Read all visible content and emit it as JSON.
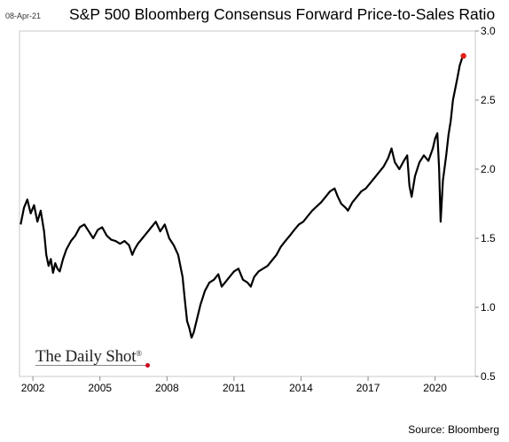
{
  "header": {
    "date_stamp": "08-Apr-21",
    "title": "S&P 500 Bloomberg Consensus Forward Price-to-Sales Ratio"
  },
  "footer": {
    "source": "Source: Bloomberg",
    "logo_text": "The Daily Shot",
    "logo_mark": "®"
  },
  "chart_data": {
    "type": "line",
    "title": "S&P 500 Bloomberg Consensus Forward Price-to-Sales Ratio",
    "xlabel": "",
    "ylabel": "",
    "xlim": [
      2001.4,
      2021.8
    ],
    "ylim": [
      0.5,
      3.0
    ],
    "y_axis_side": "right",
    "x_ticks": [
      2002,
      2005,
      2008,
      2011,
      2014,
      2017,
      2020
    ],
    "x_tick_labels": [
      "2002",
      "2005",
      "2008",
      "2011",
      "2014",
      "2017",
      "2020"
    ],
    "y_ticks": [
      0.5,
      1.0,
      1.5,
      2.0,
      2.5,
      3.0
    ],
    "y_tick_labels": [
      "0.5",
      "1.0",
      "1.5",
      "2.0",
      "2.5",
      "3.0"
    ],
    "grid": false,
    "series": [
      {
        "color": "#000000",
        "x": [
          2001.45,
          2001.6,
          2001.75,
          2001.9,
          2002.05,
          2002.2,
          2002.35,
          2002.5,
          2002.6,
          2002.7,
          2002.8,
          2002.9,
          2003.0,
          2003.1,
          2003.2,
          2003.35,
          2003.5,
          2003.7,
          2003.9,
          2004.1,
          2004.3,
          2004.5,
          2004.7,
          2004.9,
          2005.1,
          2005.3,
          2005.5,
          2005.7,
          2005.9,
          2006.1,
          2006.3,
          2006.45,
          2006.55,
          2006.7,
          2006.9,
          2007.1,
          2007.3,
          2007.5,
          2007.7,
          2007.9,
          2008.1,
          2008.3,
          2008.5,
          2008.7,
          2008.8,
          2008.9,
          2009.0,
          2009.1,
          2009.2,
          2009.35,
          2009.5,
          2009.7,
          2009.9,
          2010.1,
          2010.3,
          2010.45,
          2010.6,
          2010.8,
          2011.0,
          2011.2,
          2011.4,
          2011.6,
          2011.75,
          2011.9,
          2012.1,
          2012.3,
          2012.5,
          2012.7,
          2012.9,
          2013.1,
          2013.3,
          2013.5,
          2013.7,
          2013.9,
          2014.1,
          2014.3,
          2014.5,
          2014.7,
          2014.9,
          2015.1,
          2015.3,
          2015.5,
          2015.65,
          2015.8,
          2016.0,
          2016.1,
          2016.3,
          2016.5,
          2016.7,
          2016.9,
          2017.1,
          2017.3,
          2017.5,
          2017.7,
          2017.9,
          2018.05,
          2018.2,
          2018.4,
          2018.6,
          2018.75,
          2018.85,
          2018.95,
          2019.1,
          2019.3,
          2019.5,
          2019.7,
          2019.9,
          2020.0,
          2020.1,
          2020.18,
          2020.25,
          2020.35,
          2020.5,
          2020.6,
          2020.7,
          2020.8,
          2020.9,
          2021.0,
          2021.1,
          2021.2,
          2021.27
        ],
        "values": [
          1.6,
          1.72,
          1.78,
          1.68,
          1.74,
          1.62,
          1.7,
          1.55,
          1.38,
          1.3,
          1.35,
          1.25,
          1.32,
          1.28,
          1.26,
          1.35,
          1.42,
          1.48,
          1.52,
          1.58,
          1.6,
          1.55,
          1.5,
          1.56,
          1.58,
          1.52,
          1.49,
          1.48,
          1.46,
          1.48,
          1.45,
          1.38,
          1.42,
          1.46,
          1.5,
          1.54,
          1.58,
          1.62,
          1.55,
          1.6,
          1.5,
          1.45,
          1.38,
          1.22,
          1.05,
          0.9,
          0.85,
          0.78,
          0.82,
          0.92,
          1.02,
          1.12,
          1.18,
          1.2,
          1.24,
          1.15,
          1.18,
          1.22,
          1.26,
          1.28,
          1.2,
          1.18,
          1.15,
          1.22,
          1.26,
          1.28,
          1.3,
          1.34,
          1.38,
          1.44,
          1.48,
          1.52,
          1.56,
          1.6,
          1.62,
          1.66,
          1.7,
          1.73,
          1.76,
          1.8,
          1.84,
          1.86,
          1.8,
          1.75,
          1.72,
          1.7,
          1.76,
          1.8,
          1.84,
          1.86,
          1.9,
          1.94,
          1.98,
          2.02,
          2.08,
          2.15,
          2.05,
          2.0,
          2.06,
          2.1,
          1.88,
          1.8,
          1.95,
          2.05,
          2.1,
          2.06,
          2.15,
          2.22,
          2.26,
          2.0,
          1.62,
          1.92,
          2.1,
          2.25,
          2.35,
          2.5,
          2.58,
          2.66,
          2.75,
          2.8,
          2.82
        ]
      }
    ],
    "last_point_marker": {
      "x": 2021.27,
      "y": 2.82,
      "color": "#e32119"
    }
  }
}
